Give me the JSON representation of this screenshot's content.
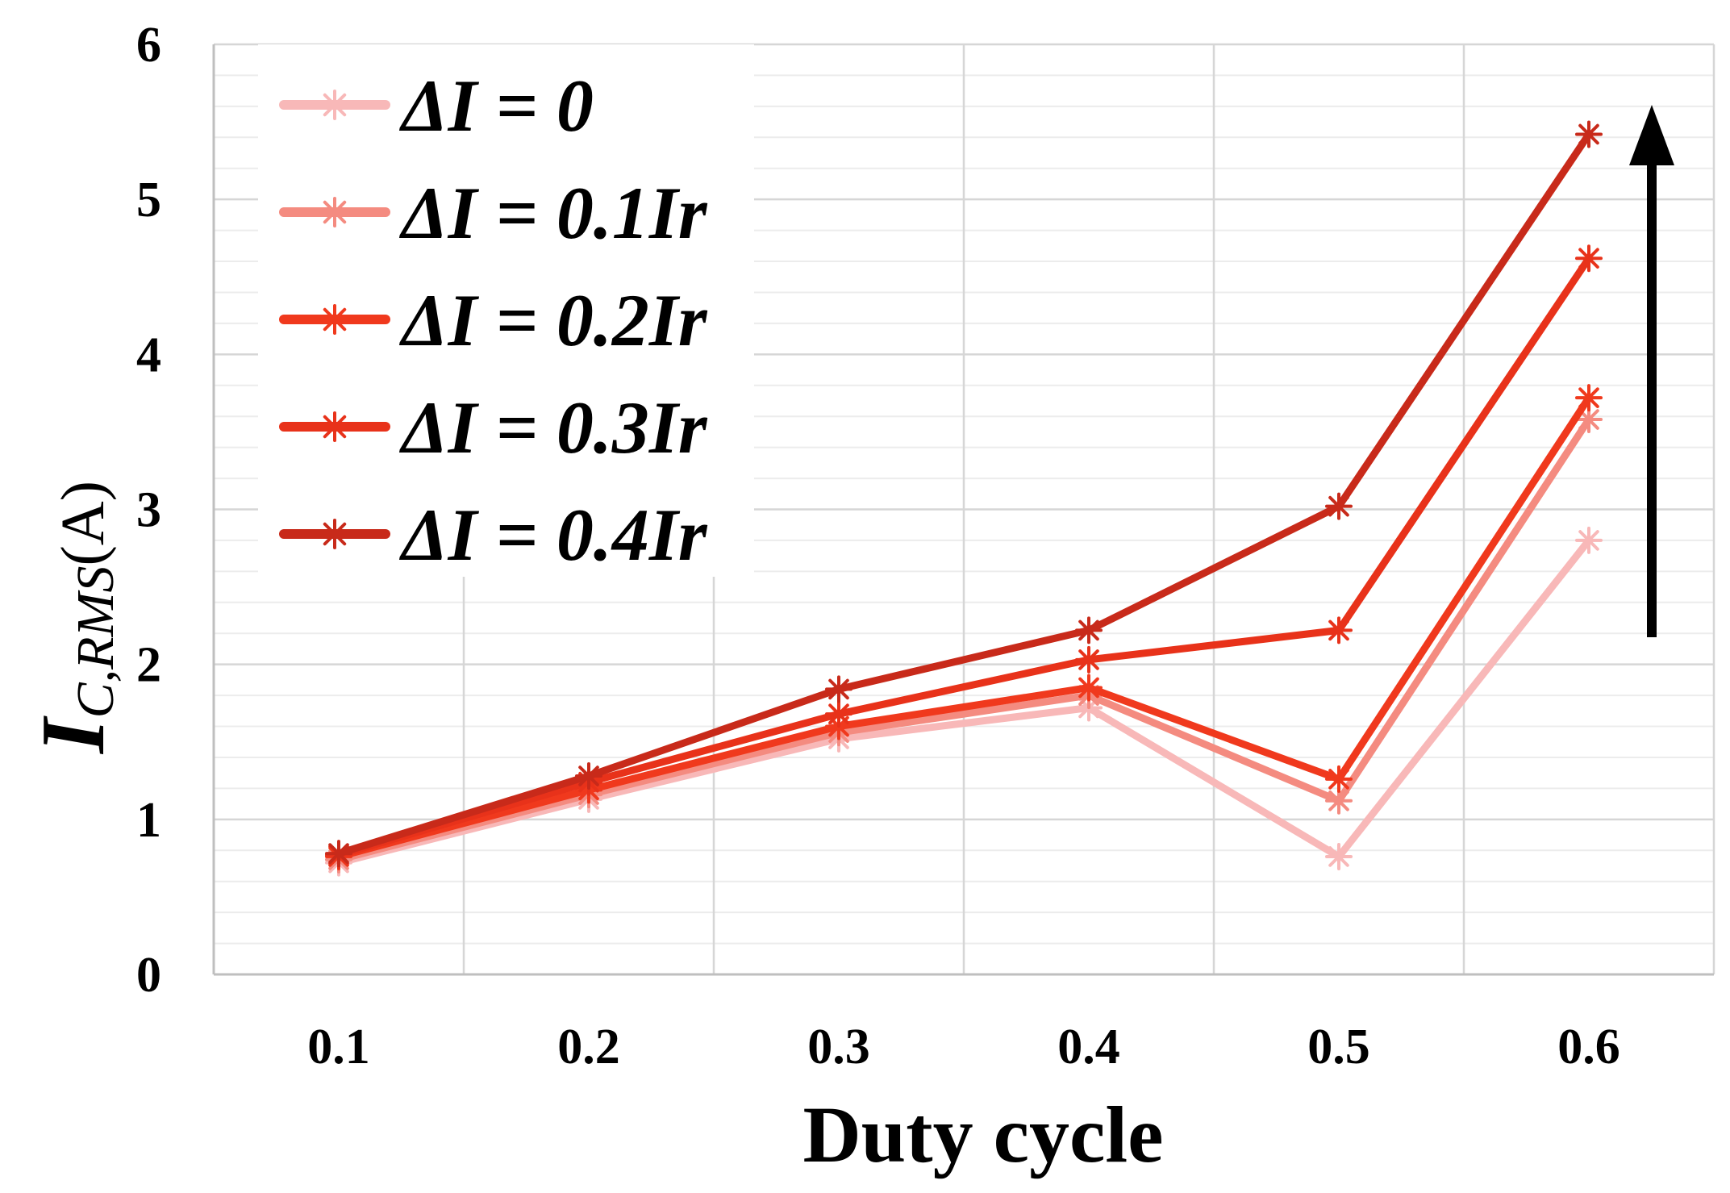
{
  "chart_data": {
    "type": "line",
    "title": "",
    "xlabel": "Duty cycle",
    "ylabel": {
      "main": "I",
      "subscript": "C,RMS",
      "unit": "(A)"
    },
    "x": [
      0.1,
      0.2,
      0.3,
      0.4,
      0.5,
      0.6
    ],
    "x_tick_labels": [
      "0.1",
      "0.2",
      "0.3",
      "0.4",
      "0.5",
      "0.6"
    ],
    "y_tick_labels": [
      "0",
      "1",
      "2",
      "3",
      "4",
      "5",
      "6"
    ],
    "xlim": [
      0.05,
      0.65
    ],
    "ylim": [
      0,
      6
    ],
    "grid": true,
    "legend_position": "top-left",
    "marker": "asterisk",
    "arrow_annotation": "upward arrow indicating increasing ΔI",
    "series": [
      {
        "name": "ΔI = 0",
        "color": "#f8b8b8",
        "values": [
          0.72,
          1.13,
          1.52,
          1.72,
          0.76,
          2.8
        ]
      },
      {
        "name": "ΔI = 0.1Ir",
        "color": "#f48b80",
        "values": [
          0.74,
          1.16,
          1.56,
          1.8,
          1.12,
          3.58
        ]
      },
      {
        "name": "ΔI = 0.2Ir",
        "color": "#f0391d",
        "values": [
          0.76,
          1.19,
          1.6,
          1.85,
          1.26,
          3.72
        ]
      },
      {
        "name": "ΔI = 0.3Ir",
        "color": "#e8321a",
        "values": [
          0.77,
          1.24,
          1.68,
          2.03,
          2.22,
          4.62
        ]
      },
      {
        "name": "ΔI = 0.4Ir",
        "color": "#c82a1a",
        "values": [
          0.78,
          1.28,
          1.84,
          2.22,
          3.02,
          5.42
        ]
      }
    ]
  }
}
